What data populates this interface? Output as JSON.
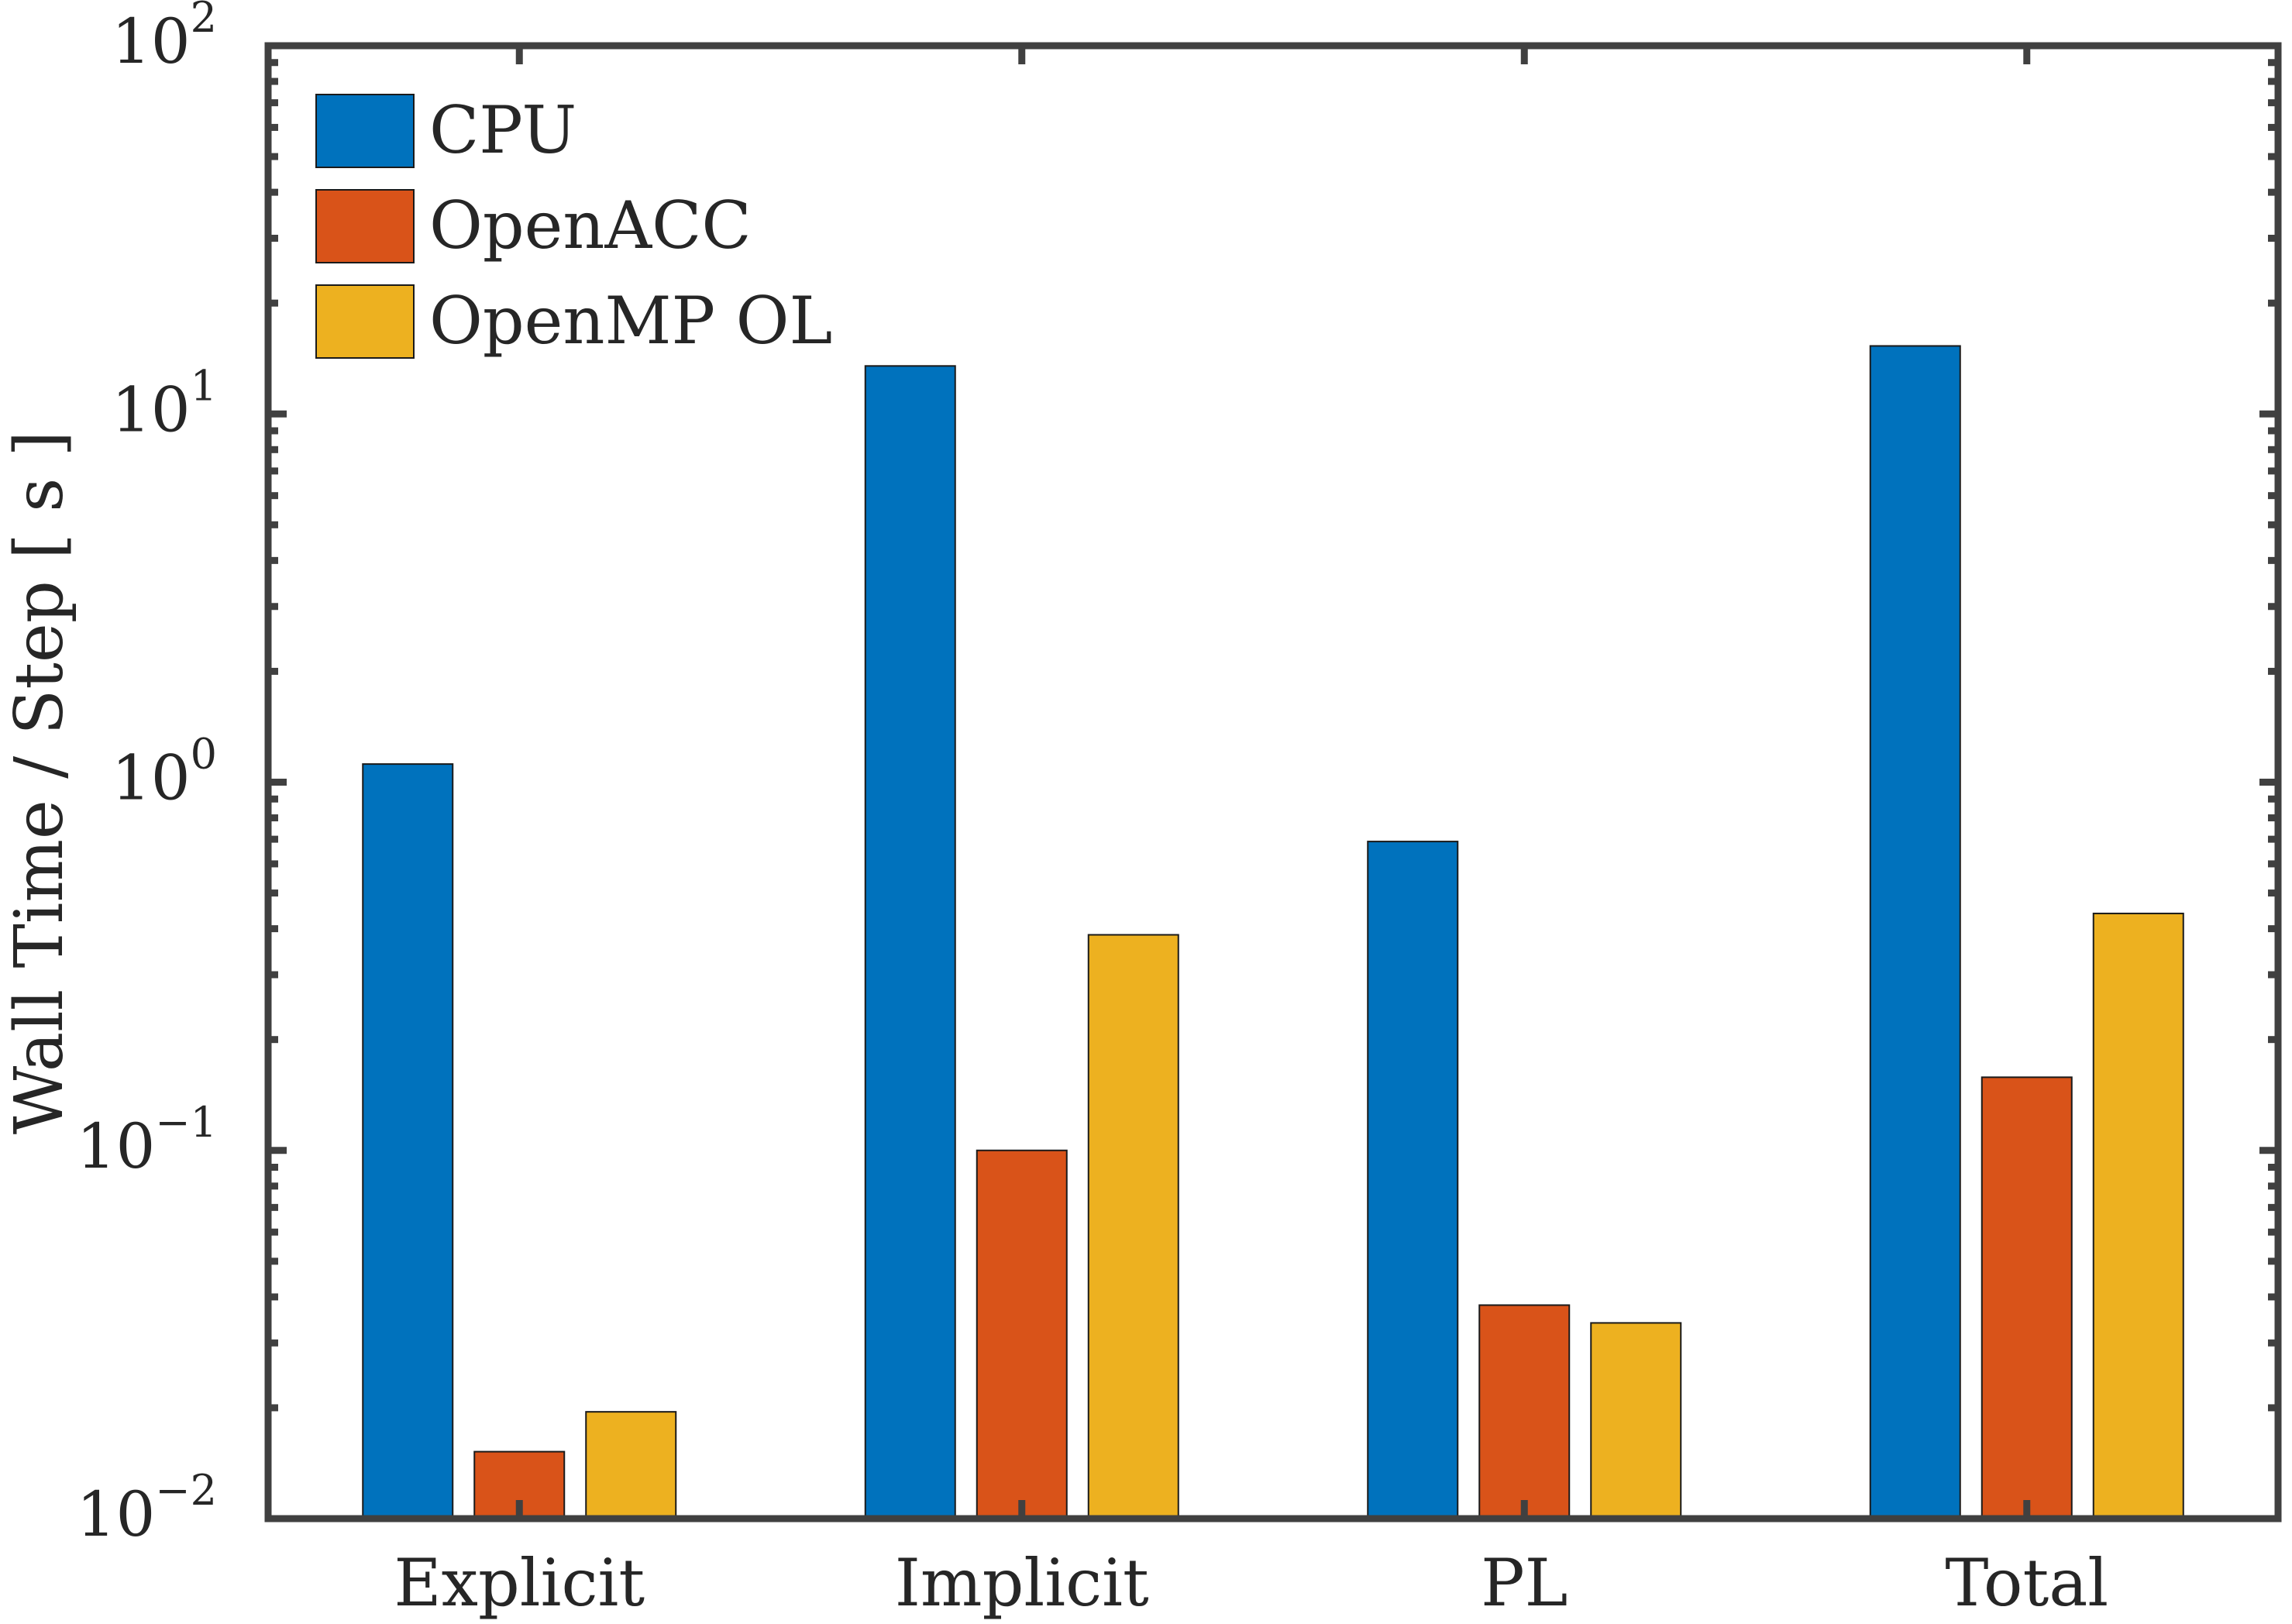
{
  "chart_data": {
    "type": "bar",
    "title": "",
    "xlabel": "",
    "ylabel": "Wall Time / Step [ s ]",
    "yscale": "log",
    "ylim": [
      0.01,
      100
    ],
    "yticks": [
      {
        "value": 0.01,
        "base": "10",
        "exp": "−2"
      },
      {
        "value": 0.1,
        "base": "10",
        "exp": "−1"
      },
      {
        "value": 1,
        "base": "10",
        "exp": "0"
      },
      {
        "value": 10,
        "base": "10",
        "exp": "1"
      },
      {
        "value": 100,
        "base": "10",
        "exp": "2"
      }
    ],
    "categories": [
      "Explicit",
      "Implicit",
      "PL",
      "Total"
    ],
    "series": [
      {
        "name": "CPU",
        "color": "#0072BD",
        "values": [
          1.12,
          13.5,
          0.69,
          15.3
        ]
      },
      {
        "name": "OpenACC",
        "color": "#D95319",
        "values": [
          0.0152,
          0.1,
          0.038,
          0.158
        ]
      },
      {
        "name": "OpenMP OL",
        "color": "#EDB120",
        "values": [
          0.0195,
          0.385,
          0.034,
          0.44
        ]
      }
    ],
    "legend": {
      "position": "top-left",
      "box": false
    },
    "grid": false,
    "frame_color": "#404040"
  }
}
